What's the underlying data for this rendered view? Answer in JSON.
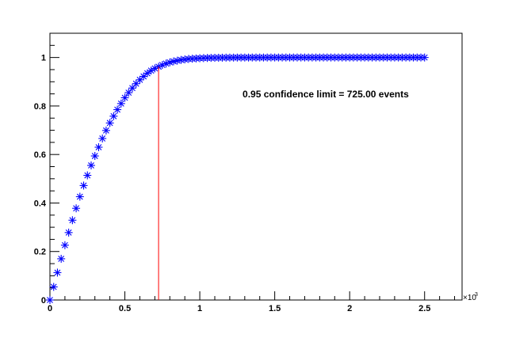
{
  "chart_data": {
    "type": "scatter",
    "xlim": [
      0,
      2.75
    ],
    "ylim": [
      0,
      1.1
    ],
    "x_exponent_label": "×10",
    "x_exponent_power": "3",
    "x_ticks": [
      {
        "value": 0,
        "label": "0"
      },
      {
        "value": 0.5,
        "label": "0.5"
      },
      {
        "value": 1,
        "label": "1"
      },
      {
        "value": 1.5,
        "label": "1.5"
      },
      {
        "value": 2,
        "label": "2"
      },
      {
        "value": 2.5,
        "label": "2.5"
      }
    ],
    "y_ticks": [
      {
        "value": 0,
        "label": "0"
      },
      {
        "value": 0.2,
        "label": "0.2"
      },
      {
        "value": 0.4,
        "label": "0.4"
      },
      {
        "value": 0.6,
        "label": "0.6"
      },
      {
        "value": 0.8,
        "label": "0.8"
      },
      {
        "value": 1,
        "label": "1"
      }
    ],
    "series": [
      {
        "color": "#0000ff",
        "marker": "asterisk",
        "x": [
          0,
          0.025,
          0.05,
          0.075,
          0.1,
          0.125,
          0.15,
          0.175,
          0.2,
          0.225,
          0.25,
          0.275,
          0.3,
          0.325,
          0.35,
          0.375,
          0.4,
          0.425,
          0.45,
          0.475,
          0.5,
          0.525,
          0.55,
          0.575,
          0.6,
          0.625,
          0.65,
          0.675,
          0.7,
          0.725,
          0.75,
          0.775,
          0.8,
          0.825,
          0.85,
          0.875,
          0.9,
          0.925,
          0.95,
          0.975,
          1,
          1.025,
          1.05,
          1.075,
          1.1,
          1.125,
          1.15,
          1.175,
          1.2,
          1.225,
          1.25,
          1.275,
          1.3,
          1.325,
          1.35,
          1.375,
          1.4,
          1.425,
          1.45,
          1.475,
          1.5,
          1.525,
          1.55,
          1.575,
          1.6,
          1.625,
          1.65,
          1.675,
          1.7,
          1.725,
          1.75,
          1.775,
          1.8,
          1.825,
          1.85,
          1.875,
          1.9,
          1.925,
          1.95,
          1.975,
          2,
          2.025,
          2.05,
          2.075,
          2.1,
          2.125,
          2.15,
          2.175,
          2.2,
          2.225,
          2.25,
          2.275,
          2.3,
          2.325,
          2.35,
          2.375,
          2.4,
          2.425,
          2.45,
          2.475,
          2.5
        ],
        "y": [
          0,
          0.054,
          0.113,
          0.17,
          0.226,
          0.278,
          0.329,
          0.378,
          0.426,
          0.472,
          0.514,
          0.555,
          0.594,
          0.63,
          0.666,
          0.699,
          0.73,
          0.758,
          0.785,
          0.81,
          0.834,
          0.855,
          0.874,
          0.892,
          0.908,
          0.922,
          0.935,
          0.946,
          0.955,
          0.962,
          0.969,
          0.975,
          0.98,
          0.984,
          0.987,
          0.99,
          0.992,
          0.994,
          0.995,
          0.996,
          0.997,
          0.9976,
          0.9981,
          0.9985,
          0.9988,
          0.999,
          0.9992,
          0.9994,
          0.9995,
          0.9996,
          0.9997,
          0.9997,
          0.9998,
          0.9998,
          0.9999,
          0.9999,
          0.9999,
          0.9999,
          0.9999,
          1,
          1,
          1,
          1,
          1,
          1,
          1,
          1,
          1,
          1,
          1,
          1,
          1,
          1,
          1,
          1,
          1,
          1,
          1,
          1,
          1,
          1,
          1,
          1,
          1,
          1,
          1,
          1,
          1,
          1,
          1,
          1,
          1,
          1,
          1,
          1,
          1,
          1,
          1,
          1,
          1,
          1
        ]
      }
    ],
    "vertical_line": {
      "x": 0.725,
      "y_top": 0.962,
      "color": "#ff0000"
    },
    "annotations": [
      {
        "text": "0.95 confidence limit = 725.00 events",
        "x": 1.84,
        "y": 0.835
      }
    ],
    "grid": false,
    "legend": "none"
  }
}
